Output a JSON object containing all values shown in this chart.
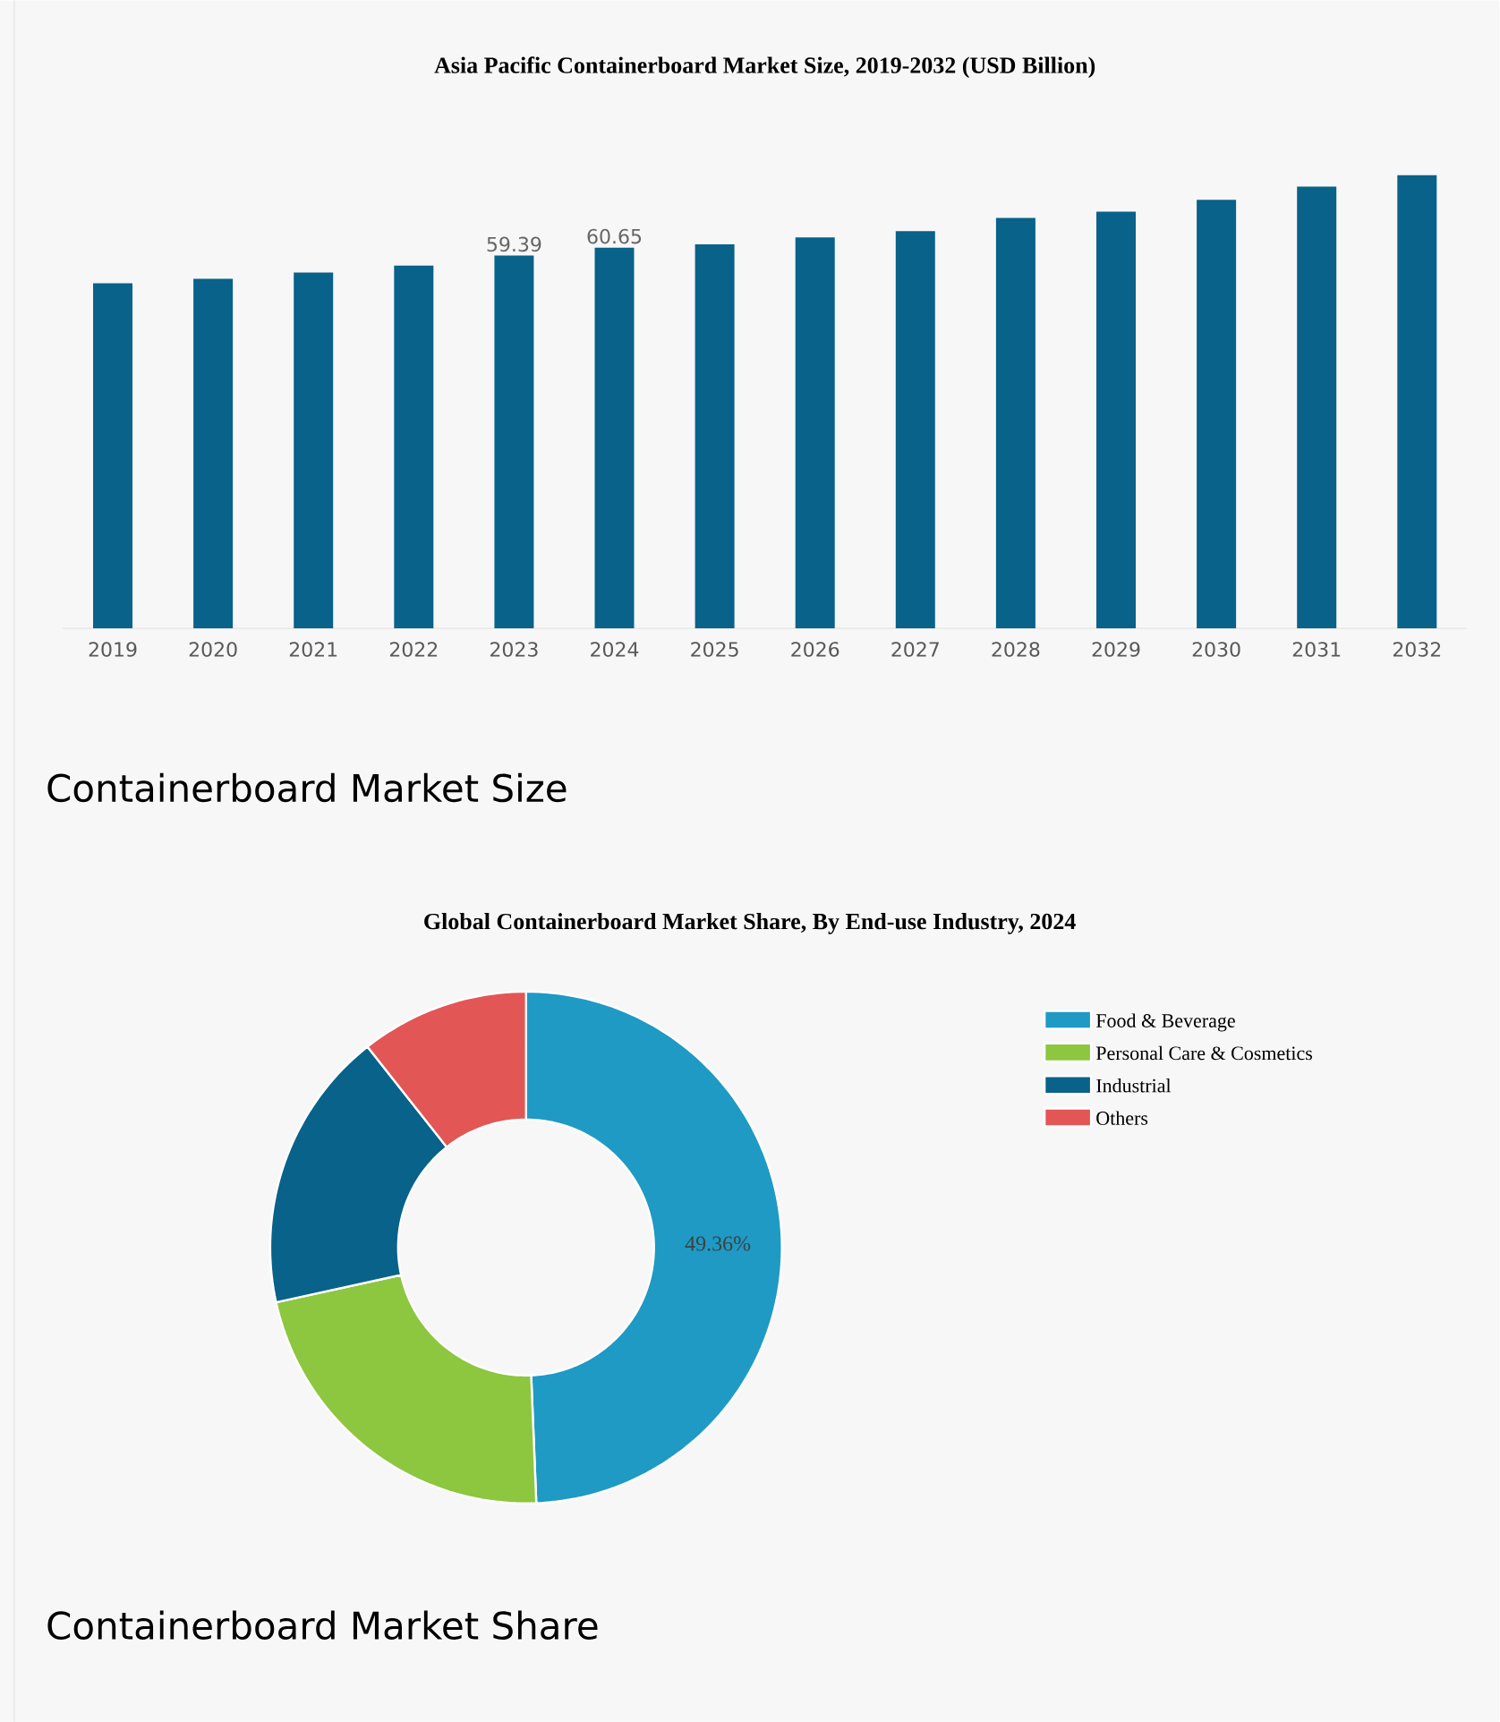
{
  "chart_data": [
    {
      "type": "bar",
      "title": "Asia Pacific Containerboard Market Size, 2019-2032 (USD Billion)",
      "categories": [
        "2019",
        "2020",
        "2021",
        "2022",
        "2023",
        "2024",
        "2025",
        "2026",
        "2027",
        "2028",
        "2029",
        "2030",
        "2031",
        "2032"
      ],
      "values": [
        55.0,
        55.7,
        56.7,
        57.8,
        59.39,
        60.65,
        61.2,
        62.3,
        63.3,
        65.4,
        66.4,
        68.3,
        70.4,
        72.2
      ],
      "value_labels": [
        null,
        null,
        null,
        null,
        "59.39",
        "60.65",
        null,
        null,
        null,
        null,
        null,
        null,
        null,
        null
      ],
      "color": "#08628a",
      "annotations": [
        "Containerboard Market Size"
      ]
    },
    {
      "type": "donut",
      "title": "Global Containerboard Market Share, By End-use Industry, 2024",
      "categories": [
        "Food & Beverage",
        "Personal Care & Cosmetics",
        "Industrial",
        "Others"
      ],
      "values": [
        49.36,
        22.2,
        17.8,
        10.64
      ],
      "colors": [
        "#1e9ac4",
        "#8dc63f",
        "#08628a",
        "#e35656"
      ],
      "value_labels": [
        "49.36%",
        null,
        null,
        null
      ],
      "legend": "right",
      "annotations": [
        "Containerboard Market Share"
      ]
    }
  ]
}
